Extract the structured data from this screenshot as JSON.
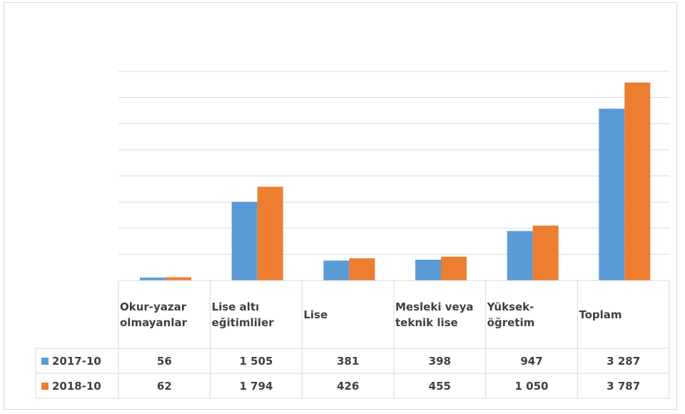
{
  "chart_data": {
    "type": "bar",
    "categories": [
      "Okur-yazar olmayanlar",
      "Lise altı eğitimliler",
      "Lise",
      "Mesleki veya teknik lise",
      "Yüksek-öğretim",
      "Toplam"
    ],
    "series": [
      {
        "name": "2017-10",
        "color": "#5b9bd5",
        "values": [
          56,
          1505,
          381,
          398,
          947,
          3287
        ],
        "value_labels": [
          "56",
          "1 505",
          "381",
          "398",
          "947",
          "3 287"
        ]
      },
      {
        "name": "2018-10",
        "color": "#ed7d31",
        "values": [
          62,
          1794,
          426,
          455,
          1050,
          3787
        ],
        "value_labels": [
          "62",
          "1 794",
          "426",
          "455",
          "1 050",
          "3 787"
        ]
      }
    ],
    "ylim": [
      0,
      4000
    ],
    "yticks": [
      0,
      500,
      1000,
      1500,
      2000,
      2500,
      3000,
      3500,
      4000
    ],
    "grid": true,
    "data_table": true
  }
}
